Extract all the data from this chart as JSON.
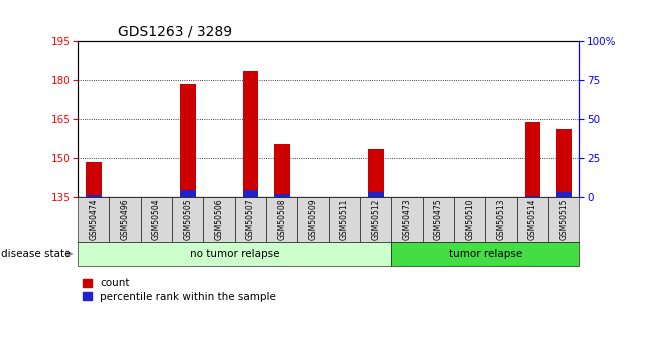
{
  "title": "GDS1263 / 3289",
  "samples": [
    "GSM50474",
    "GSM50496",
    "GSM50504",
    "GSM50505",
    "GSM50506",
    "GSM50507",
    "GSM50508",
    "GSM50509",
    "GSM50511",
    "GSM50512",
    "GSM50473",
    "GSM50475",
    "GSM50510",
    "GSM50513",
    "GSM50514",
    "GSM50515"
  ],
  "counts": [
    148.5,
    135.0,
    135.0,
    178.5,
    135.0,
    183.5,
    155.5,
    135.0,
    135.0,
    153.5,
    135.0,
    135.0,
    135.0,
    135.0,
    164.0,
    161.0
  ],
  "percentiles": [
    1.0,
    0.0,
    0.0,
    4.0,
    0.0,
    4.5,
    2.0,
    0.0,
    0.0,
    3.0,
    0.0,
    0.0,
    0.0,
    0.0,
    0.5,
    3.0
  ],
  "ylim_left": [
    135,
    195
  ],
  "ylim_right": [
    0,
    100
  ],
  "yticks_left": [
    135,
    150,
    165,
    180,
    195
  ],
  "yticks_right": [
    0,
    25,
    50,
    75,
    100
  ],
  "ytick_labels_right": [
    "0",
    "25",
    "50",
    "75",
    "100%"
  ],
  "bar_color_red": "#cc0000",
  "bar_color_blue": "#2222cc",
  "no_tumor_count": 10,
  "tumor_relapse_count": 6,
  "no_tumor_label": "no tumor relapse",
  "tumor_label": "tumor relapse",
  "disease_state_label": "disease state",
  "legend_count": "count",
  "legend_pct": "percentile rank within the sample",
  "bg_color_plot": "#ffffff",
  "bg_color_xticklabel": "#d8d8d8",
  "bg_color_no_tumor": "#ccffcc",
  "bg_color_tumor": "#44dd44",
  "baseline": 135,
  "grid_ticks": [
    150,
    165,
    180
  ]
}
